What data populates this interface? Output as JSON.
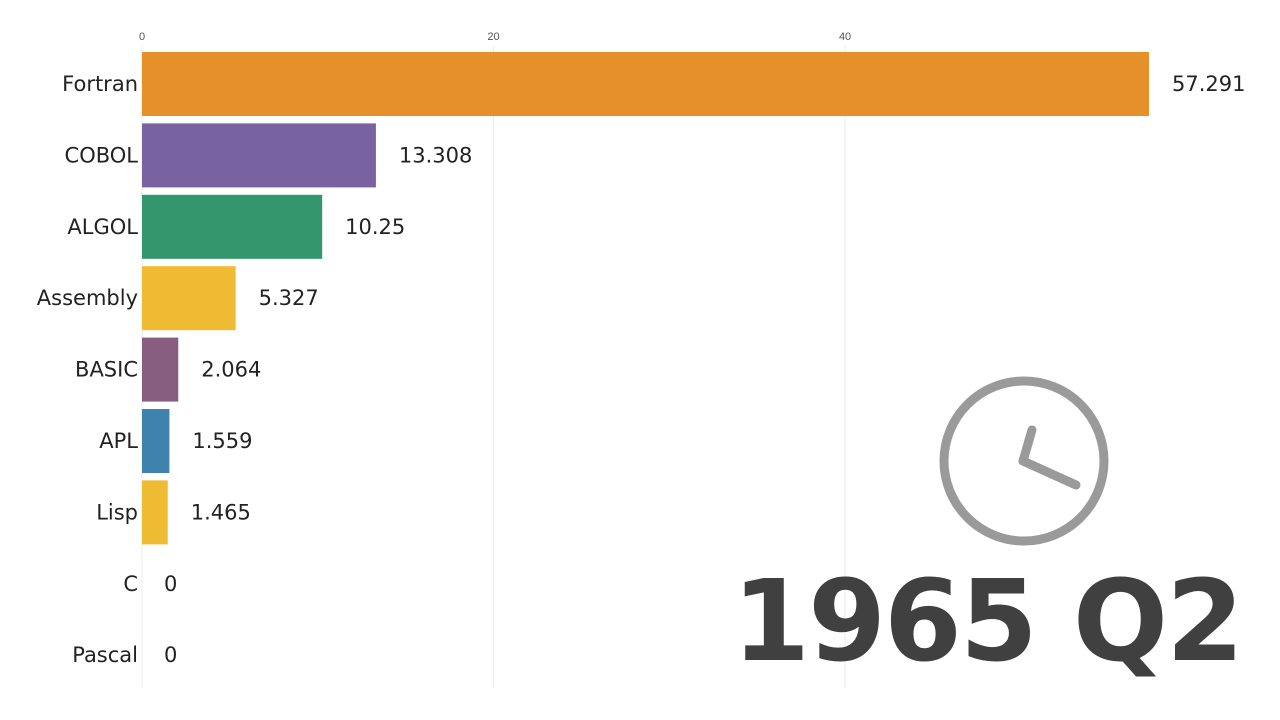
{
  "chart_data": {
    "type": "bar",
    "orientation": "horizontal",
    "categories": [
      "Fortran",
      "COBOL",
      "ALGOL",
      "Assembly",
      "BASIC",
      "APL",
      "Lisp",
      "C",
      "Pascal"
    ],
    "values": [
      57.291,
      13.308,
      10.25,
      5.327,
      2.064,
      1.559,
      1.465,
      0,
      0
    ],
    "value_labels": [
      "57.291",
      "13.308",
      "10.25",
      "5.327",
      "2.064",
      "1.559",
      "1.465",
      "0",
      "0"
    ],
    "colors": [
      "#e6902b",
      "#7962a0",
      "#33966c",
      "#efbb32",
      "#885e80",
      "#3f83ad",
      "#efbb32",
      "#e6902b",
      "#7962a0"
    ],
    "x_ticks": [
      0,
      20,
      40
    ],
    "x_tick_labels": [
      "0",
      "20",
      "40"
    ],
    "xlim": [
      0,
      57.291
    ],
    "grid": true,
    "title": "",
    "xlabel": "",
    "ylabel": "",
    "period_label": "1965 Q2",
    "period_icon": "clock-icon"
  }
}
